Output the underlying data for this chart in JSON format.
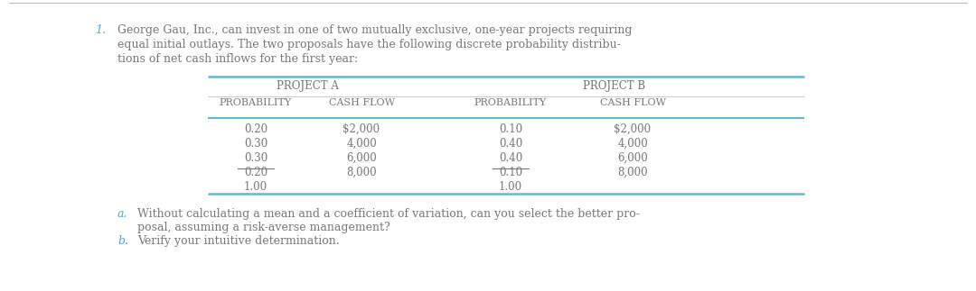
{
  "bg_color": "#ffffff",
  "top_line_color": "#aaaaaa",
  "table_line_color": "#5bbccc",
  "header_sep_color": "#cccccc",
  "number_color": "#888888",
  "text_color": "#777777",
  "label_color": "#44aacc",
  "problem_number": "1.",
  "problem_text_line1": "George Gau, Inc., can invest in one of two mutually exclusive, one-year projects requiring",
  "problem_text_line2": "equal initial outlays. The two proposals have the following discrete probability distribu-",
  "problem_text_line3": "tions of net cash inflows for the first year:",
  "proj_a_header": "PROJECT A",
  "proj_b_header": "PROJECT B",
  "col_headers": [
    "PROBABILITY",
    "CASH FLOW",
    "PROBABILITY",
    "CASH FLOW"
  ],
  "proj_a_prob": [
    "0.20",
    "0.30",
    "0.30",
    "0.20",
    "1.00"
  ],
  "proj_a_cf": [
    "$2,000",
    "4,000",
    "6,000",
    "8,000",
    ""
  ],
  "proj_b_prob": [
    "0.10",
    "0.40",
    "0.40",
    "0.10",
    "1.00"
  ],
  "proj_b_cf": [
    "$2,000",
    "4,000",
    "6,000",
    "8,000",
    ""
  ],
  "question_a_label": "a.",
  "question_a_text1": "Without calculating a mean and a coefficient of variation, can you select the better pro-",
  "question_a_text2": "posal, assuming a risk-averse management?",
  "question_b_label": "b.",
  "question_b_text": "Verify your intuitive determination."
}
